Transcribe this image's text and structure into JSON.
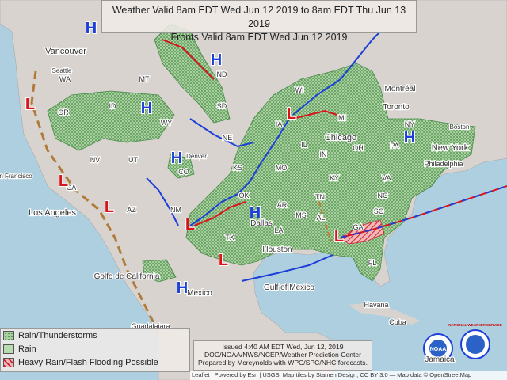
{
  "header": {
    "lines": [
      "Weather Valid 8am EDT Wed Jun 12 2019 to 8am EDT Thu Jun 13 2019",
      "Fronts Valid 8am EDT Wed Jun 12 2019"
    ]
  },
  "legend": {
    "items": [
      "Rain/Thunderstorms",
      "Rain",
      "Heavy Rain/Flash Flooding Possible"
    ]
  },
  "issued": {
    "lines": [
      "Issued 4:40 AM EDT Wed, Jun 12, 2019",
      "DOC/NOAA/NWS/NCEP/Weather Prediction Center",
      "Prepared by Mcreynolds with WPC/SPC/NHC forecasts."
    ]
  },
  "attribution": "Leaflet | Powered by Esri | USGS, Map tiles by Stamen Design, CC BY 3.0 — Map data © OpenStreetMap",
  "logos": [
    "NOAA",
    "NATIONAL WEATHER SERVICE"
  ],
  "map_labels": [
    "Vancouver",
    "Seattle",
    "WA",
    "OR",
    "MT",
    "ND",
    "SD",
    "ID",
    "WY",
    "NE",
    "NV",
    "UT",
    "CO",
    "Denver",
    "KS",
    "CA",
    "n Francisco",
    "Los Angeles",
    "AZ",
    "NM",
    "OK",
    "TX",
    "Dallas",
    "AR",
    "LA",
    "MS",
    "AL",
    "Houston",
    "MO",
    "IA",
    "IL",
    "IN",
    "OH",
    "KY",
    "TN",
    "Chicago",
    "MI",
    "WI",
    "Toronto",
    "Montréal",
    "Boston",
    "NY",
    "New York",
    "PA",
    "Philadelphia",
    "VA",
    "NC",
    "SC",
    "GA",
    "FL",
    "Gulf of Mexico",
    "Golfo de California",
    "Mexico",
    "Havana",
    "Cuba",
    "Jamaica",
    "Guadalajara"
  ],
  "pressure_centers": [
    "H",
    "H",
    "H",
    "H",
    "H",
    "H",
    "H",
    "L",
    "L",
    "L",
    "L",
    "L",
    "L",
    "L"
  ]
}
